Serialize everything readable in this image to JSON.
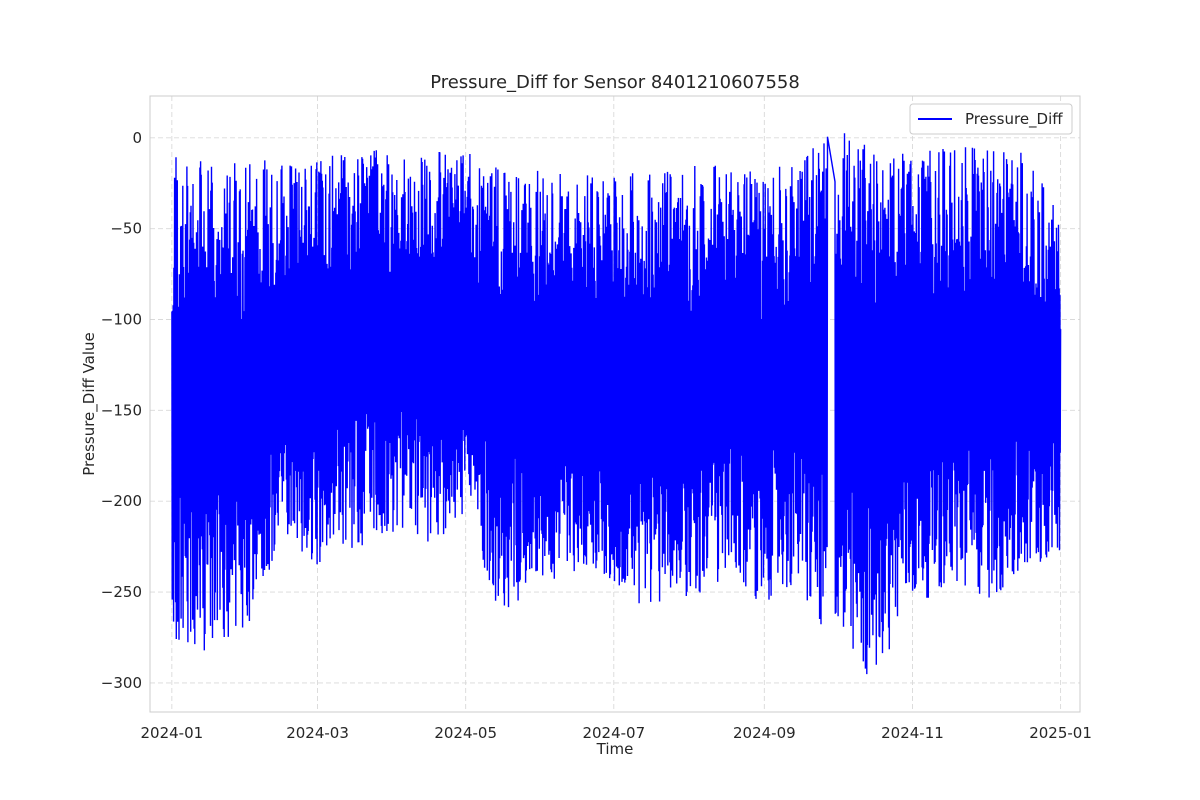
{
  "chart_data": {
    "type": "line",
    "title": "Pressure_Diff for Sensor 8401210607558",
    "xlabel": "Time",
    "ylabel": "Pressure_Diff Value",
    "x_range": [
      "2023-12-23",
      "2025-01-09"
    ],
    "ylim": [
      -316,
      23
    ],
    "x_ticks": [
      "2024-01",
      "2024-03",
      "2024-05",
      "2024-07",
      "2024-09",
      "2024-11",
      "2025-01"
    ],
    "y_ticks": [
      0,
      -50,
      -100,
      -150,
      -200,
      -250,
      -300
    ],
    "grid": true,
    "legend_position": "top-right",
    "series": [
      {
        "name": "Pressure_Diff",
        "color": "#0000ff",
        "envelope_note": "dense noisy signal; monthly approximate range",
        "x": [
          "2024-01-01",
          "2024-01-15",
          "2024-02-01",
          "2024-02-15",
          "2024-03-01",
          "2024-03-15",
          "2024-04-01",
          "2024-04-15",
          "2024-05-01",
          "2024-05-15",
          "2024-06-01",
          "2024-06-15",
          "2024-07-01",
          "2024-07-15",
          "2024-08-01",
          "2024-08-15",
          "2024-09-01",
          "2024-09-15",
          "2024-10-01",
          "2024-10-15",
          "2024-11-01",
          "2024-11-15",
          "2024-12-01",
          "2024-12-15",
          "2025-01-01"
        ],
        "max": [
          -8,
          -12,
          -10,
          -14,
          -11,
          -8,
          -6,
          -5,
          -6,
          -12,
          -18,
          -20,
          -20,
          -16,
          -15,
          -12,
          -20,
          -10,
          8,
          -5,
          -8,
          -5,
          -5,
          -6,
          -40
        ],
        "min": [
          -277,
          -283,
          -272,
          -220,
          -235,
          -228,
          -218,
          -225,
          -210,
          -263,
          -245,
          -240,
          -248,
          -262,
          -252,
          -250,
          -255,
          -250,
          -292,
          -300,
          -258,
          -248,
          -255,
          -248,
          -227
        ]
      }
    ]
  }
}
